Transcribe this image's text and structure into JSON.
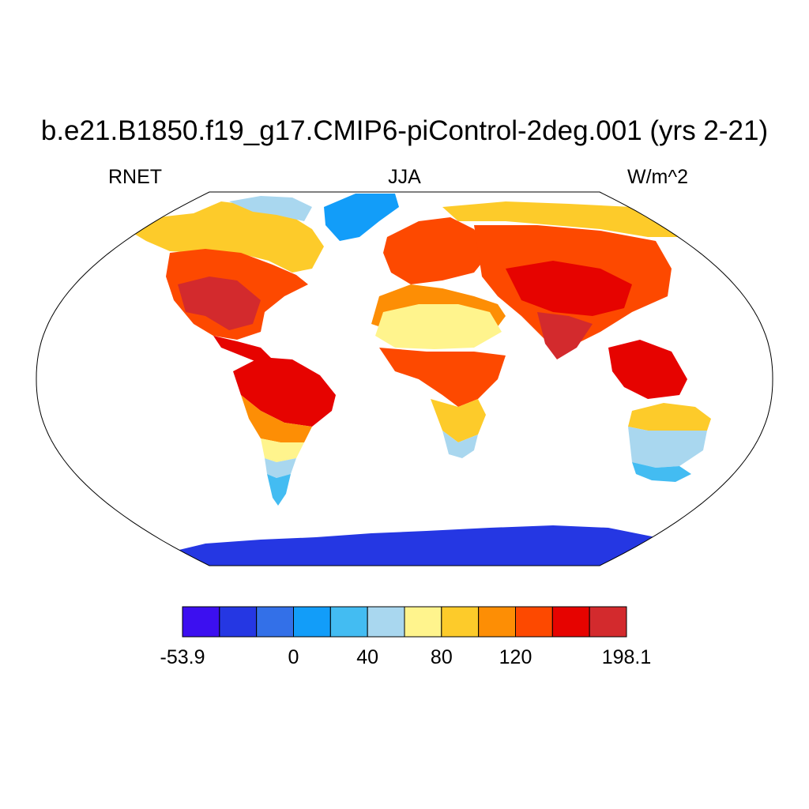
{
  "title": "b.e21.B1850.f19_g17.CMIP6-piControl-2deg.001 (yrs 2-21)",
  "subtitle_left": "RNET",
  "subtitle_center": "JJA",
  "subtitle_right": "W/m^2",
  "colorbar": {
    "colors": [
      "#3c0ff0",
      "#2537e3",
      "#3370e8",
      "#129df9",
      "#43bcf2",
      "#a9d7ef",
      "#fff48d",
      "#fdcb2a",
      "#fd8e05",
      "#fd4900",
      "#e60300",
      "#d32a2d"
    ],
    "tick_labels": [
      "-53.9",
      "0",
      "40",
      "80",
      "120",
      "198.1"
    ],
    "tick_values": [
      -53.9,
      0,
      40,
      80,
      120,
      198.1
    ],
    "boundaries": [
      -53.9,
      -40,
      -20,
      0,
      20,
      40,
      60,
      80,
      100,
      120,
      140,
      160,
      198.1
    ]
  },
  "map": {
    "projection": "robinson",
    "field": "RNET",
    "season": "JJA",
    "units": "W/m^2"
  }
}
